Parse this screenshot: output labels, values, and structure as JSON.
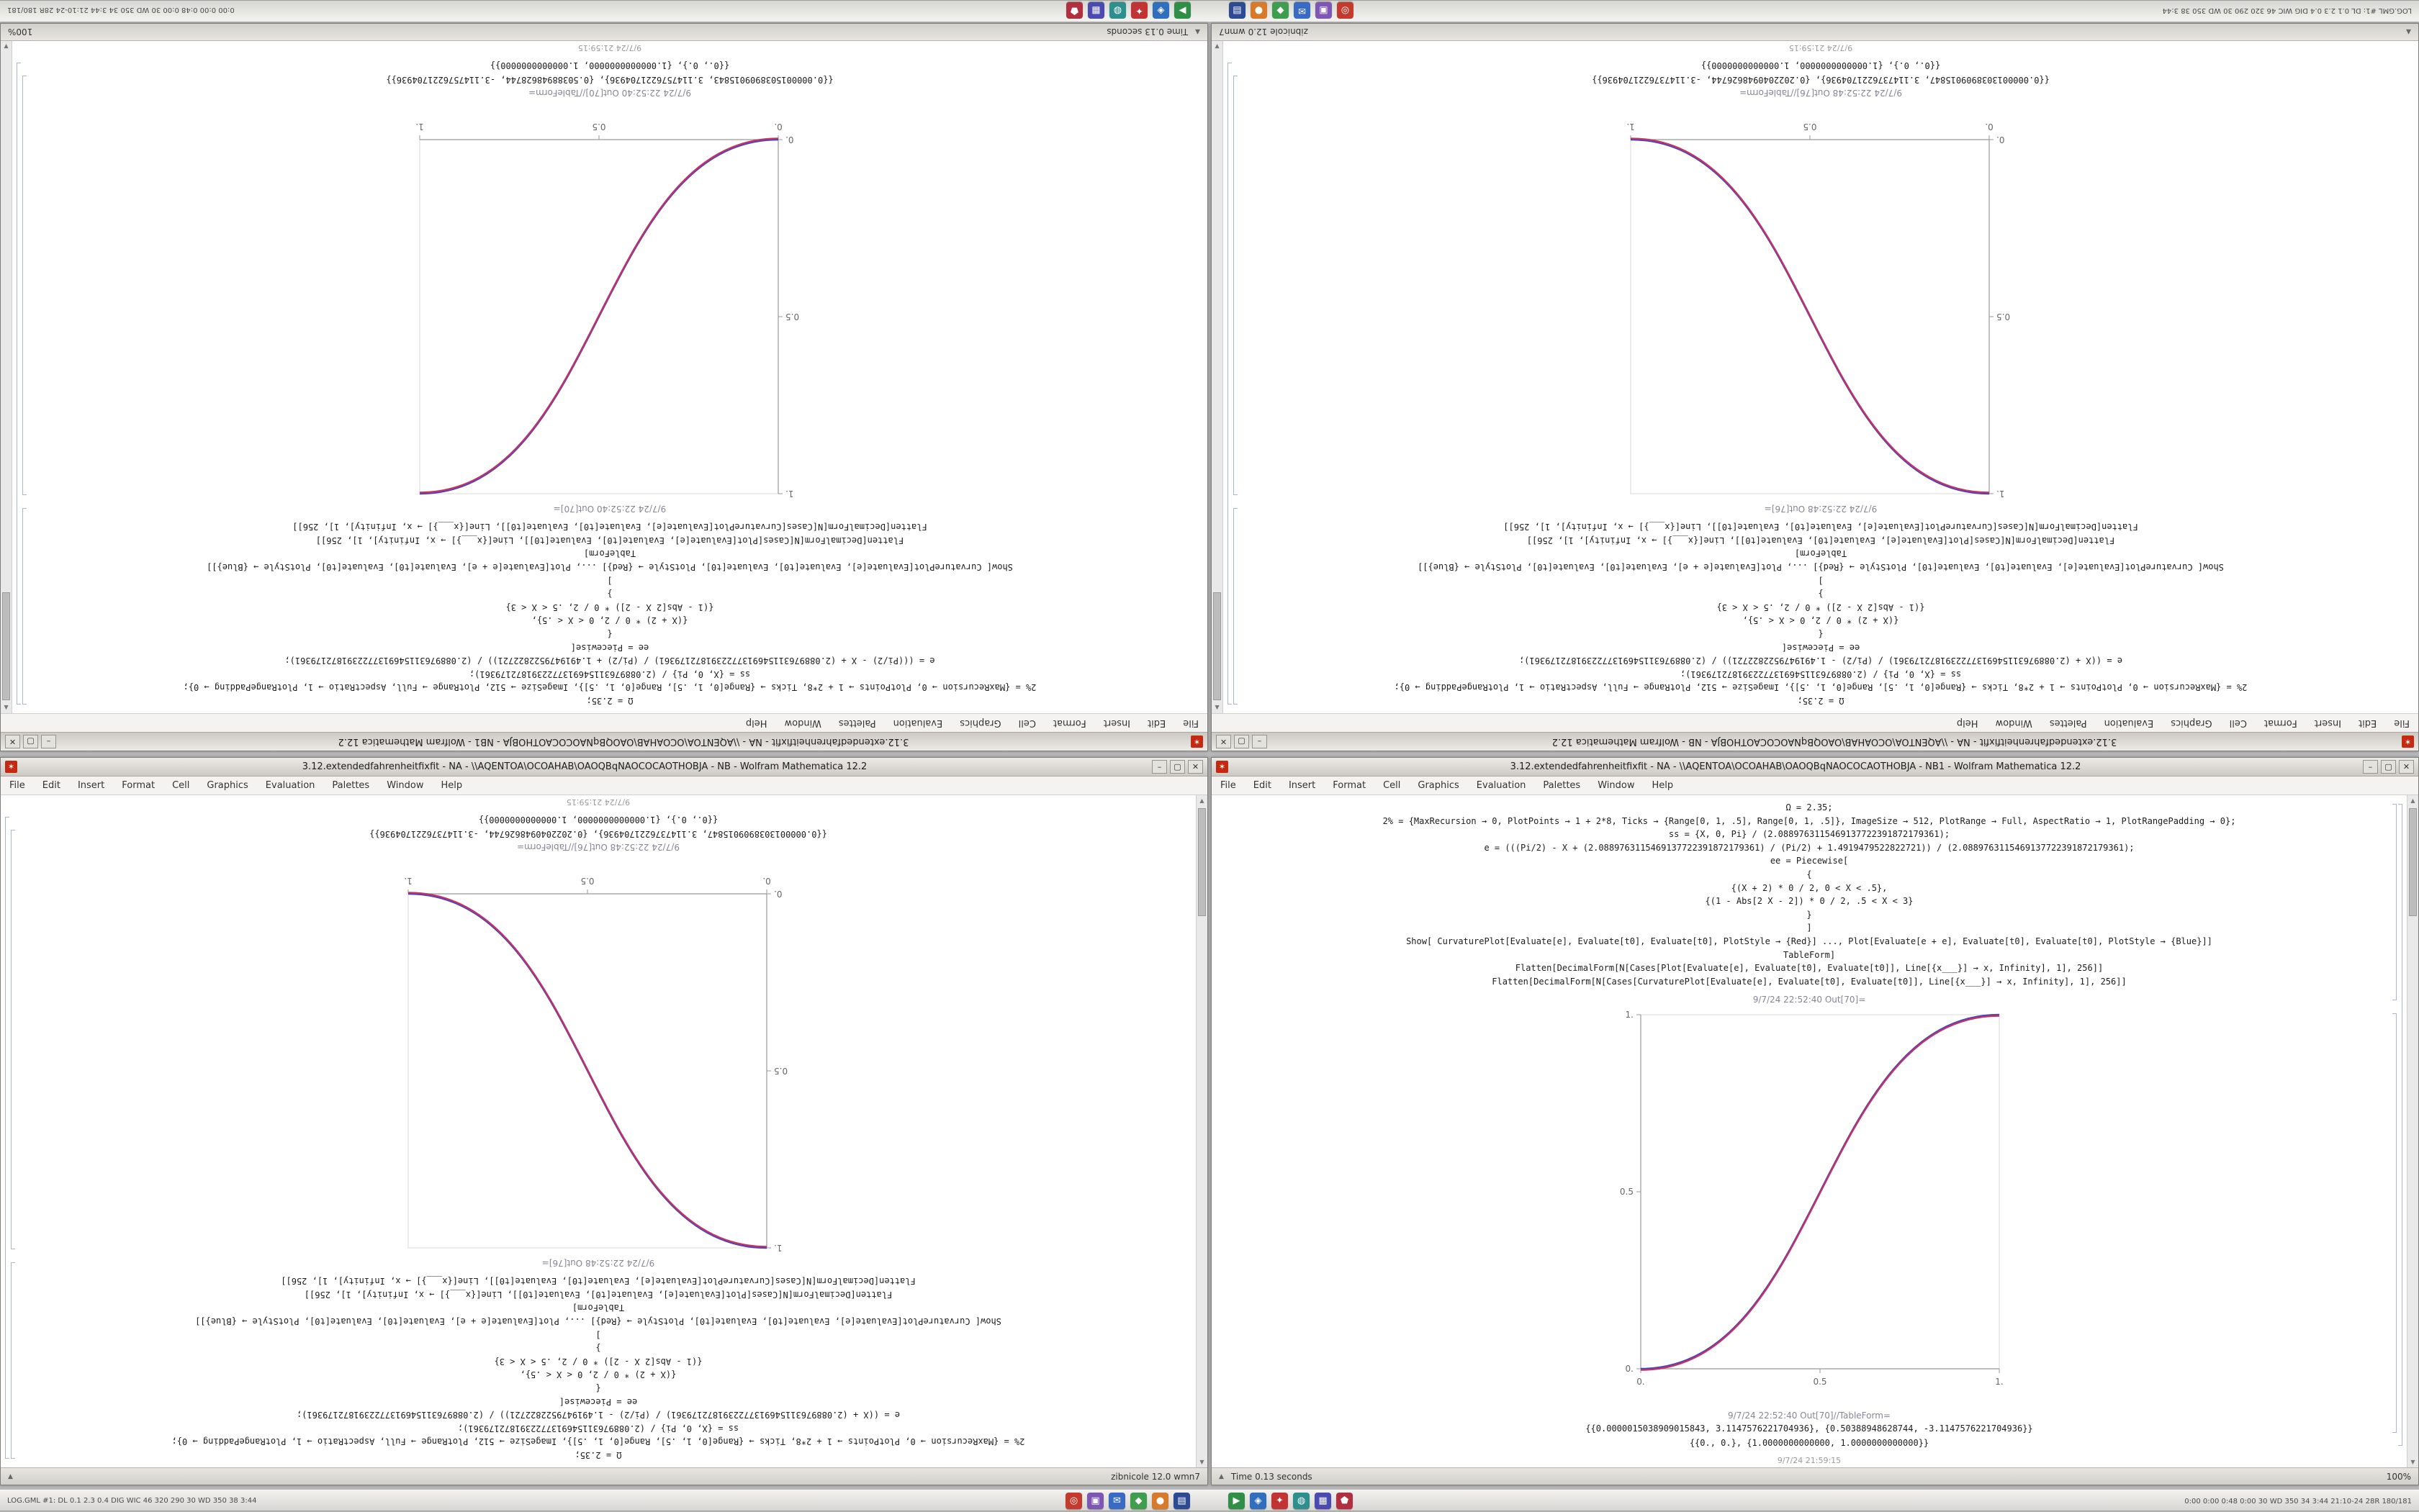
{
  "chrome": {
    "minimize_glyph": "–",
    "maximize_glyph": "▢",
    "close_glyph": "✕",
    "resize_glyph": "▲",
    "app_icon_glyph": "✶"
  },
  "menu": [
    "File",
    "Edit",
    "Insert",
    "Format",
    "Cell",
    "Graphics",
    "Evaluation",
    "Palettes",
    "Window",
    "Help"
  ],
  "taskbar": {
    "left_text": "LOG.GML #1:  DL 0.1 2.3 0.4  DIG WIC 46 320 290  30 WD 350 38 3:44",
    "tray_text": "0:00 0:00 0:48 0:00   30 WD 350 34 3:44   21:10-24   28R 180/181",
    "icons_group1": [
      {
        "name": "red-circle-app-icon",
        "color": "#c43b2e",
        "glyph": "◎"
      },
      {
        "name": "purple-app-icon",
        "color": "#7e57b5",
        "glyph": "▣"
      },
      {
        "name": "blue-mail-app-icon",
        "color": "#3a6bc4",
        "glyph": "✉"
      },
      {
        "name": "green-app-icon",
        "color": "#3f9e4d",
        "glyph": "◆"
      },
      {
        "name": "orange-app-icon",
        "color": "#d97a2b",
        "glyph": "●"
      },
      {
        "name": "navy-app-icon",
        "color": "#2d4a94",
        "glyph": "▤"
      }
    ],
    "icons_group2": [
      {
        "name": "green-play-app-icon",
        "color": "#2f8f46",
        "glyph": "▶"
      },
      {
        "name": "blue-gem-app-icon",
        "color": "#2f6fbe",
        "glyph": "◈"
      },
      {
        "name": "red-star-app-icon",
        "color": "#c23333",
        "glyph": "✦"
      },
      {
        "name": "teal-app-icon",
        "color": "#2e8f8f",
        "glyph": "◍"
      },
      {
        "name": "indigo-grid-app-icon",
        "color": "#4a4ab0",
        "glyph": "▦"
      },
      {
        "name": "maroon-app-icon",
        "color": "#b03040",
        "glyph": "⬟"
      }
    ]
  },
  "windows": {
    "a": {
      "title": "3.12.extendedfahrenheitfixfit - NA - \\\\AQENTOA\\OCOAHAB\\OAOQBqNAOCOCAOTHOBJA - NB1 - Wolfram Mathematica 12.2",
      "status_left": "Time 0.13 seconds",
      "status_right": "100%",
      "cells": [
        "Ω = 2.35;",
        "2% = {MaxRecursion → 0, PlotPoints → 1 + 2*8, Ticks → {Range[0, 1, .5], Range[0, 1, .5]}, ImageSize → 512, PlotRange → Full, AspectRatio → 1, PlotRangePadding → 0};",
        "ss = {X, 0, Pi} / (2.0889763115469137722391872179361);",
        "e = (((Pi/2) - X + (2.0889763115469137722391872179361) / (Pi/2) + 1.4919479522822721)) / (2.0889763115469137722391872179361);",
        "ee = Piecewise[",
        "{",
        "{(X + 2) * 0 / 2, 0 < X < .5},",
        "{(1 - Abs[2 X - 2]) * 0 / 2, .5 < X < 3}",
        "}",
        "]",
        "Show[ CurvaturePlot[Evaluate[e], Evaluate[t0], Evaluate[t0], PlotStyle → {Red}] ..., Plot[Evaluate[e + e], Evaluate[t0], Evaluate[t0], PlotStyle → {Blue}]]",
        "TableForm]",
        "Flatten[DecimalForm[N[Cases[Plot[Evaluate[e], Evaluate[t0], Evaluate[t0]], Line[{x___}] → x, Infinity], 1], 256]]",
        "Flatten[DecimalForm[N[Cases[CurvaturePlot[Evaluate[e], Evaluate[t0], Evaluate[t0]], Line[{x___}] → x, Infinity], 1], 256]]"
      ],
      "out_label": "9/7/24 22:52:40 Out[70]=",
      "tableform_label": "9/7/24 22:52:40 Out[70]//TableForm=",
      "result_lines": [
        "{{0.0000015038909015843, 3.1147576221704936}, {0.50388948628744, -3.1147576221704936}}",
        "{{0., 0.}, {1.0000000000000, 1.0000000000000}}"
      ],
      "footer_label": "9/7/24 21:59:15",
      "plot": {
        "type": "line",
        "direction": "ascending",
        "x_ticks": [
          "0.",
          "0.5",
          "1."
        ],
        "y_ticks": [
          "0.",
          "0.5",
          "1."
        ],
        "xlim": [
          0,
          1
        ],
        "ylim": [
          0,
          1
        ],
        "curve_colors": [
          "#4444c0",
          "#c03366"
        ],
        "axis_color": "#999999"
      }
    },
    "b": {
      "title": "3.12.extendedfahrenheitfixfit - NA - \\\\AQENTOA\\OCOAHAB\\OAOQBqNAOCOCAOTHOBJA - NB - Wolfram Mathematica 12.2",
      "status_left": "",
      "status_right": "zibnicole 12.0 wmn7",
      "cells": [
        "Ω = 2.35;",
        "2% = {MaxRecursion → 0, PlotPoints → 1 + 2*8, Ticks → {Range[0, 1, .5], Range[0, 1, .5]}, ImageSize → 512, PlotRange → Full, AspectRatio → 1, PlotRangePadding → 0};",
        "ss = {X, 0, Pi} / (2.0889763115469137722391872179361);",
        "e = ((X + (2.0889763115469137722391872179361) / (Pi/2) - 1.4919479522822721)) / (2.0889763115469137722391872179361);",
        "ee = Piecewise[",
        "{",
        "{(X + 2) * 0 / 2, 0 < X < .5},",
        "{(1 - Abs[2 X - 2]) * 0 / 2, .5 < X < 3}",
        "}",
        "]",
        "Show[ CurvaturePlot[Evaluate[e], Evaluate[t0], Evaluate[t0], PlotStyle → {Red}] ..., Plot[Evaluate[e + e], Evaluate[t0], Evaluate[t0], PlotStyle → {Blue}]]",
        "TableForm]",
        "Flatten[DecimalForm[N[Cases[Plot[Evaluate[e], Evaluate[t0], Evaluate[t0]], Line[{x___}] → x, Infinity], 1], 256]]",
        "Flatten[DecimalForm[N[Cases[CurvaturePlot[Evaluate[e], Evaluate[t0], Evaluate[t0]], Line[{x___}] → x, Infinity], 1], 256]]"
      ],
      "out_label": "9/7/24 22:52:48 Out[76]=",
      "tableform_label": "9/7/24 22:52:48 Out[76]//TableForm=",
      "result_lines": [
        "{{0.0000013038909015847, 3.1147376221704936}, {0.2022040948626744, -3.1147376221704936}}",
        "{{0., 0.}, {1.0000000000000, 1.0000000000000}}"
      ],
      "footer_label": "9/7/24 21:59:15",
      "plot": {
        "type": "line",
        "direction": "descending",
        "x_ticks": [
          "0.",
          "0.5",
          "1."
        ],
        "y_ticks": [
          "0.",
          "0.5",
          "1."
        ],
        "xlim": [
          0,
          1
        ],
        "ylim": [
          0,
          1
        ],
        "curve_colors": [
          "#4444c0",
          "#c03366"
        ],
        "axis_color": "#999999"
      }
    }
  }
}
